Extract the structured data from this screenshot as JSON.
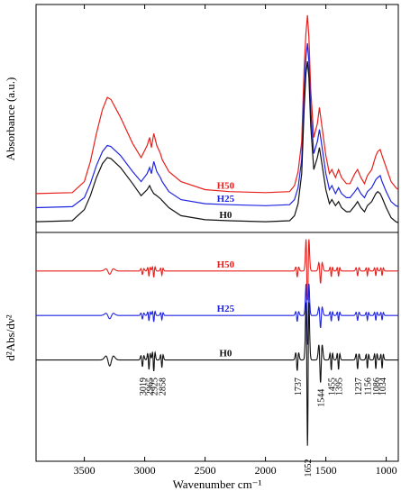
{
  "chart_data": [
    {
      "type": "line",
      "panel": "top",
      "ylabel": "Absorbance (a.u.)",
      "xlim": [
        3900,
        900
      ],
      "x_reversed": true,
      "y_ticks_shown": false,
      "series": [
        {
          "name": "H50",
          "color": "#e8201c",
          "points": [
            [
              3900,
              0.1
            ],
            [
              3600,
              0.105
            ],
            [
              3500,
              0.16
            ],
            [
              3450,
              0.26
            ],
            [
              3400,
              0.4
            ],
            [
              3350,
              0.52
            ],
            [
              3310,
              0.58
            ],
            [
              3280,
              0.57
            ],
            [
              3200,
              0.48
            ],
            [
              3100,
              0.35
            ],
            [
              3030,
              0.28
            ],
            [
              2980,
              0.34
            ],
            [
              2960,
              0.38
            ],
            [
              2945,
              0.33
            ],
            [
              2925,
              0.4
            ],
            [
              2900,
              0.34
            ],
            [
              2870,
              0.3
            ],
            [
              2855,
              0.27
            ],
            [
              2800,
              0.21
            ],
            [
              2700,
              0.16
            ],
            [
              2500,
              0.12
            ],
            [
              2300,
              0.11
            ],
            [
              2000,
              0.105
            ],
            [
              1800,
              0.11
            ],
            [
              1760,
              0.14
            ],
            [
              1730,
              0.21
            ],
            [
              1700,
              0.36
            ],
            [
              1680,
              0.72
            ],
            [
              1665,
              0.9
            ],
            [
              1652,
              0.99
            ],
            [
              1640,
              0.88
            ],
            [
              1625,
              0.62
            ],
            [
              1600,
              0.38
            ],
            [
              1570,
              0.45
            ],
            [
              1553,
              0.53
            ],
            [
              1540,
              0.47
            ],
            [
              1500,
              0.29
            ],
            [
              1470,
              0.2
            ],
            [
              1450,
              0.22
            ],
            [
              1420,
              0.18
            ],
            [
              1395,
              0.22
            ],
            [
              1370,
              0.18
            ],
            [
              1330,
              0.15
            ],
            [
              1300,
              0.15
            ],
            [
              1260,
              0.2
            ],
            [
              1237,
              0.22
            ],
            [
              1210,
              0.18
            ],
            [
              1180,
              0.15
            ],
            [
              1156,
              0.19
            ],
            [
              1120,
              0.22
            ],
            [
              1086,
              0.29
            ],
            [
              1070,
              0.31
            ],
            [
              1050,
              0.32
            ],
            [
              1034,
              0.29
            ],
            [
              1000,
              0.23
            ],
            [
              960,
              0.16
            ],
            [
              920,
              0.13
            ],
            [
              900,
              0.12
            ]
          ]
        },
        {
          "name": "H25",
          "color": "#1f24e0",
          "points": [
            [
              3900,
              0.03
            ],
            [
              3600,
              0.035
            ],
            [
              3500,
              0.08
            ],
            [
              3450,
              0.15
            ],
            [
              3400,
              0.24
            ],
            [
              3350,
              0.31
            ],
            [
              3310,
              0.34
            ],
            [
              3280,
              0.335
            ],
            [
              3200,
              0.29
            ],
            [
              3100,
              0.21
            ],
            [
              3030,
              0.16
            ],
            [
              2980,
              0.2
            ],
            [
              2960,
              0.23
            ],
            [
              2945,
              0.2
            ],
            [
              2925,
              0.26
            ],
            [
              2900,
              0.21
            ],
            [
              2870,
              0.18
            ],
            [
              2855,
              0.16
            ],
            [
              2800,
              0.11
            ],
            [
              2700,
              0.07
            ],
            [
              2500,
              0.05
            ],
            [
              2300,
              0.045
            ],
            [
              2000,
              0.04
            ],
            [
              1800,
              0.045
            ],
            [
              1760,
              0.07
            ],
            [
              1730,
              0.13
            ],
            [
              1700,
              0.27
            ],
            [
              1680,
              0.6
            ],
            [
              1665,
              0.78
            ],
            [
              1652,
              0.85
            ],
            [
              1640,
              0.76
            ],
            [
              1625,
              0.52
            ],
            [
              1600,
              0.3
            ],
            [
              1570,
              0.36
            ],
            [
              1553,
              0.42
            ],
            [
              1540,
              0.37
            ],
            [
              1500,
              0.2
            ],
            [
              1470,
              0.12
            ],
            [
              1450,
              0.14
            ],
            [
              1420,
              0.1
            ],
            [
              1395,
              0.13
            ],
            [
              1370,
              0.1
            ],
            [
              1330,
              0.08
            ],
            [
              1300,
              0.08
            ],
            [
              1260,
              0.11
            ],
            [
              1237,
              0.13
            ],
            [
              1210,
              0.1
            ],
            [
              1180,
              0.08
            ],
            [
              1156,
              0.11
            ],
            [
              1120,
              0.13
            ],
            [
              1086,
              0.17
            ],
            [
              1070,
              0.18
            ],
            [
              1050,
              0.19
            ],
            [
              1034,
              0.16
            ],
            [
              1000,
              0.11
            ],
            [
              960,
              0.06
            ],
            [
              920,
              0.04
            ],
            [
              900,
              0.035
            ]
          ]
        },
        {
          "name": "H0",
          "color": "#111111",
          "points": [
            [
              3900,
              -0.04
            ],
            [
              3600,
              -0.035
            ],
            [
              3500,
              0.02
            ],
            [
              3450,
              0.09
            ],
            [
              3400,
              0.18
            ],
            [
              3350,
              0.25
            ],
            [
              3310,
              0.28
            ],
            [
              3280,
              0.275
            ],
            [
              3200,
              0.23
            ],
            [
              3100,
              0.15
            ],
            [
              3030,
              0.09
            ],
            [
              2980,
              0.12
            ],
            [
              2960,
              0.14
            ],
            [
              2945,
              0.12
            ],
            [
              2925,
              0.1
            ],
            [
              2900,
              0.09
            ],
            [
              2870,
              0.075
            ],
            [
              2855,
              0.065
            ],
            [
              2800,
              0.03
            ],
            [
              2700,
              -0.01
            ],
            [
              2500,
              -0.03
            ],
            [
              2300,
              -0.035
            ],
            [
              2000,
              -0.04
            ],
            [
              1800,
              -0.035
            ],
            [
              1760,
              -0.01
            ],
            [
              1730,
              0.05
            ],
            [
              1700,
              0.2
            ],
            [
              1680,
              0.52
            ],
            [
              1665,
              0.7
            ],
            [
              1652,
              0.76
            ],
            [
              1640,
              0.68
            ],
            [
              1625,
              0.44
            ],
            [
              1600,
              0.22
            ],
            [
              1570,
              0.28
            ],
            [
              1553,
              0.33
            ],
            [
              1540,
              0.28
            ],
            [
              1500,
              0.12
            ],
            [
              1470,
              0.05
            ],
            [
              1450,
              0.07
            ],
            [
              1420,
              0.04
            ],
            [
              1395,
              0.06
            ],
            [
              1370,
              0.03
            ],
            [
              1330,
              0.01
            ],
            [
              1300,
              0.01
            ],
            [
              1260,
              0.04
            ],
            [
              1237,
              0.06
            ],
            [
              1210,
              0.03
            ],
            [
              1180,
              0.01
            ],
            [
              1156,
              0.04
            ],
            [
              1120,
              0.06
            ],
            [
              1086,
              0.1
            ],
            [
              1070,
              0.11
            ],
            [
              1050,
              0.1
            ],
            [
              1034,
              0.08
            ],
            [
              1000,
              0.03
            ],
            [
              960,
              -0.02
            ],
            [
              920,
              -0.04
            ],
            [
              900,
              -0.045
            ]
          ]
        }
      ]
    },
    {
      "type": "line",
      "panel": "bottom",
      "ylabel": "d²Abs/dν²",
      "xlabel": "Wavenumber cm⁻¹",
      "xlim": [
        3900,
        900
      ],
      "x_reversed": true,
      "x_ticks": [
        3500,
        3000,
        2500,
        2000,
        1500,
        1000
      ],
      "x_tick_labels": [
        "3500",
        "3000",
        "2500",
        "2000",
        "1500",
        "1000"
      ],
      "y_ticks_shown": false,
      "peak_labels": [
        "3019",
        "2965",
        "2925",
        "2858",
        "1737",
        "1652",
        "1544",
        "1455",
        "1395",
        "1237",
        "1156",
        "1086",
        "1034"
      ],
      "peak_wavenumbers": [
        3019,
        2965,
        2925,
        2858,
        1737,
        1652,
        1544,
        1455,
        1395,
        1237,
        1156,
        1086,
        1034
      ],
      "series": [
        {
          "name": "H50",
          "color": "#e8201c",
          "offset": 1.9
        },
        {
          "name": "H25",
          "color": "#1f24e0",
          "offset": 1.2
        },
        {
          "name": "H0",
          "color": "#111111",
          "offset": 0.5
        }
      ],
      "second_derivative_features": [
        {
          "x": 3290,
          "amp": -0.1,
          "w": 18
        },
        {
          "x": 3019,
          "amp": -0.11,
          "w": 7
        },
        {
          "x": 2965,
          "amp": -0.16,
          "w": 6
        },
        {
          "x": 2925,
          "amp": -0.19,
          "w": 6
        },
        {
          "x": 2858,
          "amp": -0.13,
          "w": 6
        },
        {
          "x": 1737,
          "amp": -0.18,
          "w": 7
        },
        {
          "x": 1652,
          "amp": -1.45,
          "w": 7
        },
        {
          "x": 1544,
          "amp": -0.38,
          "w": 8
        },
        {
          "x": 1455,
          "amp": -0.17,
          "w": 6
        },
        {
          "x": 1395,
          "amp": -0.16,
          "w": 6
        },
        {
          "x": 1237,
          "amp": -0.15,
          "w": 7
        },
        {
          "x": 1156,
          "amp": -0.14,
          "w": 6
        },
        {
          "x": 1086,
          "amp": -0.15,
          "w": 6
        },
        {
          "x": 1034,
          "amp": -0.14,
          "w": 6
        }
      ],
      "bottom_panel_ylim": [
        -1.05,
        2.45
      ],
      "top_panel_ylim": [
        -0.08,
        1.03
      ]
    }
  ]
}
